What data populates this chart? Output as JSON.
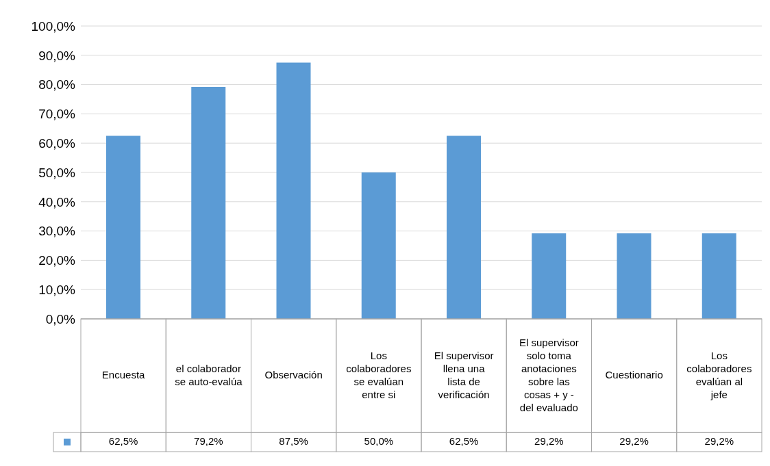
{
  "chart_data": {
    "type": "bar",
    "categories": [
      "Encuesta",
      "el colaborador se auto-evalúa",
      "Observación",
      "Los colaboradores se evalúan entre si",
      "El supervisor llena una lista de verificación",
      "El supervisor solo toma anotaciones sobre las cosas + y - del evaluado",
      "Cuestionario",
      "Los colaboradores evalúan al jefe"
    ],
    "series": [
      {
        "color": "#5b9bd5",
        "values": [
          62.5,
          79.2,
          87.5,
          50.0,
          62.5,
          29.2,
          29.2,
          29.2
        ],
        "value_labels": [
          "62,5%",
          "79,2%",
          "87,5%",
          "50,0%",
          "62,5%",
          "29,2%",
          "29,2%",
          "29,2%"
        ]
      }
    ],
    "ylim": [
      0,
      100
    ],
    "yticks": [
      {
        "value": 0,
        "label": "0,0%"
      },
      {
        "value": 10,
        "label": "10,0%"
      },
      {
        "value": 20,
        "label": "20,0%"
      },
      {
        "value": 30,
        "label": "30,0%"
      },
      {
        "value": 40,
        "label": "40,0%"
      },
      {
        "value": 50,
        "label": "50,0%"
      },
      {
        "value": 60,
        "label": "60,0%"
      },
      {
        "value": 70,
        "label": "70,0%"
      },
      {
        "value": 80,
        "label": "80,0%"
      },
      {
        "value": 90,
        "label": "90,0%"
      },
      {
        "value": 100,
        "label": "100,0%"
      }
    ],
    "grid": "y"
  }
}
